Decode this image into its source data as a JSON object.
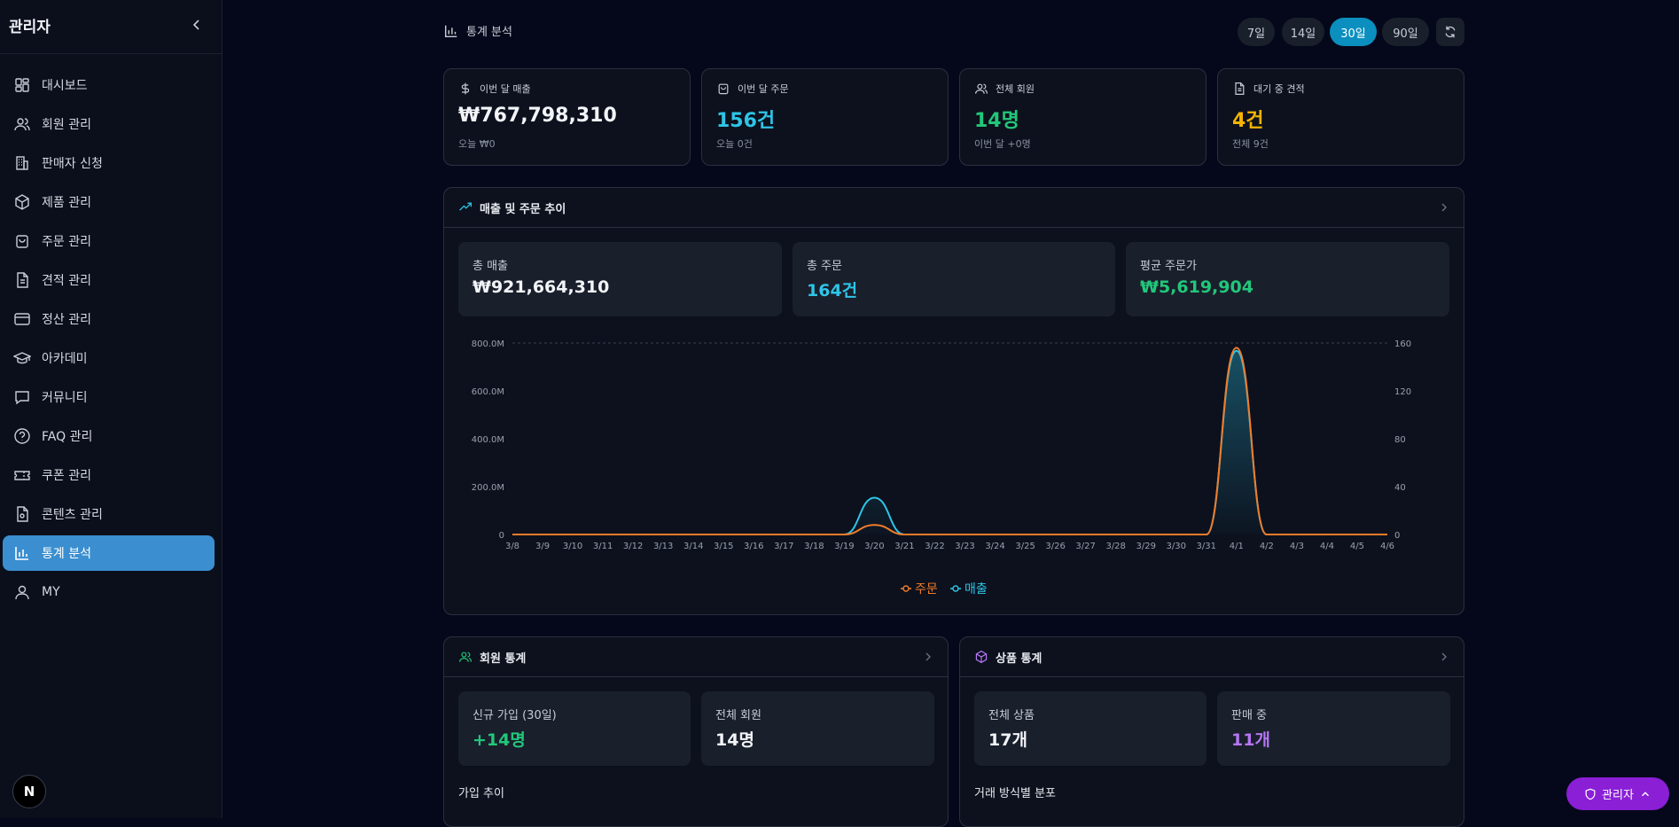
{
  "sidebar": {
    "title": "관리자",
    "items": [
      {
        "label": "대시보드",
        "icon": "dashboard-icon"
      },
      {
        "label": "회원 관리",
        "icon": "users-icon"
      },
      {
        "label": "판매자 신청",
        "icon": "building-icon"
      },
      {
        "label": "제품 관리",
        "icon": "box-icon"
      },
      {
        "label": "주문 관리",
        "icon": "bag-icon"
      },
      {
        "label": "견적 관리",
        "icon": "document-icon"
      },
      {
        "label": "정산 관리",
        "icon": "card-icon"
      },
      {
        "label": "아카데미",
        "icon": "graduation-cap-icon"
      },
      {
        "label": "커뮤니티",
        "icon": "chat-icon"
      },
      {
        "label": "FAQ 관리",
        "icon": "help-circle-icon"
      },
      {
        "label": "쿠폰 관리",
        "icon": "ticket-icon"
      },
      {
        "label": "콘텐츠 관리",
        "icon": "file-icon"
      },
      {
        "label": "통계 분석",
        "icon": "bar-chart-icon",
        "active": true
      },
      {
        "label": "MY",
        "icon": "user-icon"
      }
    ],
    "logo": "N"
  },
  "header": {
    "title": "통계 분석",
    "ranges": [
      "7일",
      "14일",
      "30일",
      "90일"
    ],
    "active_range": "30일"
  },
  "stats": [
    {
      "label": "이번 달 매출",
      "value": "₩767,798,310",
      "sub": "오늘 ₩0",
      "color": "#f2f4f8",
      "icon": "dollar-icon"
    },
    {
      "label": "이번 달 주문",
      "value": "156건",
      "sub": "오늘 0건",
      "color": "#2ec5e8",
      "icon": "bag-icon"
    },
    {
      "label": "전체 회원",
      "value": "14명",
      "sub": "이번 달 +0명",
      "color": "#22c77a",
      "icon": "users-icon"
    },
    {
      "label": "대기 중 견적",
      "value": "4건",
      "sub": "전체 9건",
      "color": "#f5b400",
      "icon": "document-icon"
    }
  ],
  "trend": {
    "title": "매출 및 주문 추이",
    "summary": [
      {
        "label": "총 매출",
        "value": "₩921,664,310"
      },
      {
        "label": "총 주문",
        "value": "164건"
      },
      {
        "label": "평균 주문가",
        "value": "₩5,619,904"
      }
    ]
  },
  "chart_data": {
    "type": "line",
    "x": [
      "3/8",
      "3/9",
      "3/10",
      "3/11",
      "3/12",
      "3/13",
      "3/14",
      "3/15",
      "3/16",
      "3/17",
      "3/18",
      "3/19",
      "3/20",
      "3/21",
      "3/22",
      "3/23",
      "3/24",
      "3/25",
      "3/26",
      "3/27",
      "3/28",
      "3/29",
      "3/30",
      "3/31",
      "4/1",
      "4/2",
      "4/3",
      "4/4",
      "4/5",
      "4/6"
    ],
    "series": [
      {
        "name": "주문",
        "axis": "right",
        "color": "#f07c2a",
        "values": [
          0,
          0,
          0,
          0,
          0,
          0,
          0,
          0,
          0,
          0,
          0,
          0,
          8,
          0,
          0,
          0,
          0,
          0,
          0,
          0,
          0,
          0,
          0,
          0,
          156,
          0,
          0,
          0,
          0,
          0
        ]
      },
      {
        "name": "매출",
        "axis": "left",
        "color": "#2ec5e8",
        "values": [
          0,
          0,
          0,
          0,
          0,
          0,
          0,
          0,
          0,
          0,
          0,
          0,
          153866000,
          0,
          0,
          0,
          0,
          0,
          0,
          0,
          0,
          0,
          0,
          0,
          767798310,
          0,
          0,
          0,
          0,
          0
        ]
      }
    ],
    "left_ticks": [
      "0",
      "200.0M",
      "400.0M",
      "600.0M",
      "800.0M"
    ],
    "right_ticks": [
      "0",
      "40",
      "80",
      "120",
      "160"
    ],
    "ylim_left": [
      0,
      800000000
    ],
    "ylim_right": [
      0,
      160
    ]
  },
  "members": {
    "title": "회원 통계",
    "new_label": "신규 가입 (30일)",
    "new_value": "+14명",
    "total_label": "전체 회원",
    "total_value": "14명",
    "sub_title": "가입 추이"
  },
  "products": {
    "title": "상품 통계",
    "total_label": "전체 상품",
    "total_value": "17개",
    "selling_label": "판매 중",
    "selling_value": "11개",
    "sub_title": "거래 방식별 분포"
  },
  "admin_button": "관리자"
}
